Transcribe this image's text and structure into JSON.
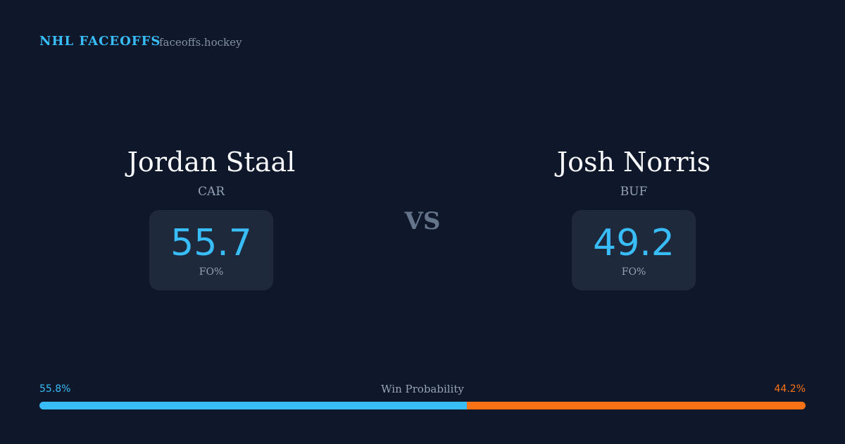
{
  "header": {
    "brand": "NHL FACEOFFS",
    "site": "faceoffs.hockey"
  },
  "players": [
    {
      "name": "Jordan Staal",
      "team": "CAR",
      "stat_value": 55.7,
      "stat_label": "FO%"
    },
    {
      "name": "Josh Norris",
      "team": "BUF",
      "stat_value": 49.2,
      "stat_label": "FO%"
    }
  ],
  "versus": "VS",
  "win_probability": {
    "title": "Win Probability",
    "values": [
      55.8,
      44.2
    ],
    "value_labels": [
      "55.8%",
      "44.2%"
    ],
    "colors": [
      "#38bdf8",
      "#f97316"
    ]
  }
}
